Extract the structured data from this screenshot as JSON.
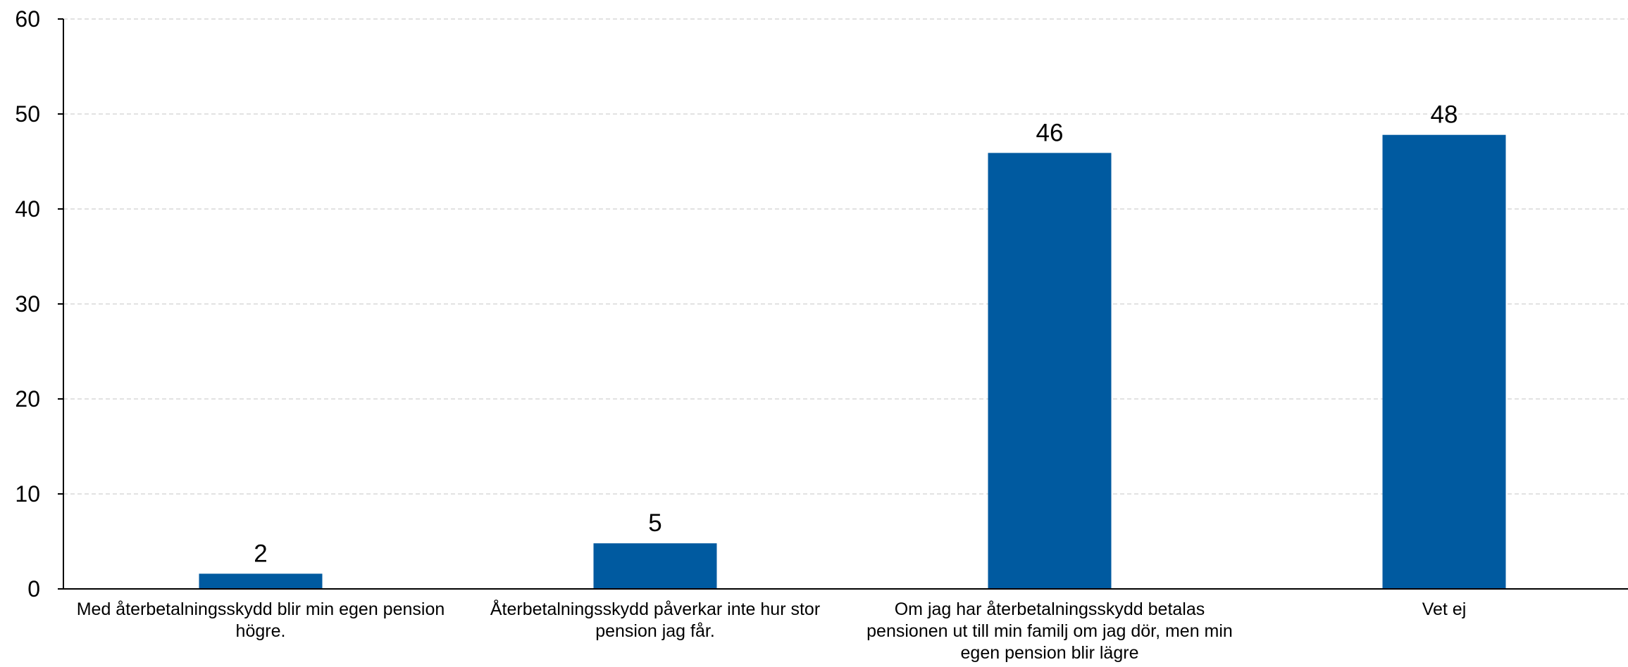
{
  "chart_data": {
    "type": "bar",
    "categories": [
      "Med återbetalningsskydd blir min egen pension högre.",
      "Återbetalningsskydd påverkar inte hur stor pension jag får.",
      "Om jag har återbetalningsskydd betalas pensionen ut till min familj om jag dör, men min egen pension blir lägre",
      "Vet ej"
    ],
    "values": [
      1.6,
      4.8,
      45.9,
      47.8
    ],
    "data_labels": [
      "2",
      "5",
      "46",
      "48"
    ],
    "title": "",
    "xlabel": "",
    "ylabel": "",
    "ylim": [
      0,
      60
    ],
    "yticks": [
      0,
      10,
      20,
      30,
      40,
      50,
      60
    ],
    "grid": true,
    "legend": "none",
    "colors": {
      "bar": "#005aa0",
      "grid": "#d9d9d9",
      "axis": "#000000"
    }
  }
}
